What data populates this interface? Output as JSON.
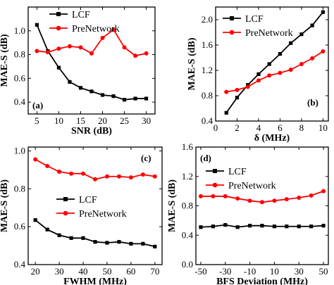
{
  "colors": {
    "lcf": "#000000",
    "prenetwork": "#ff0000",
    "axis": "#000000",
    "background": "#ffffff"
  },
  "chart_data": [
    {
      "id": "a",
      "type": "line",
      "panel_label": "(a)",
      "xlabel": "SNR (dB)",
      "ylabel": "MAE-S (dB)",
      "xlim": [
        3,
        32
      ],
      "ylim": [
        0.3,
        1.2
      ],
      "xticks": [
        5,
        10,
        15,
        20,
        25,
        30
      ],
      "yticks": [
        0.4,
        0.6,
        0.8,
        1.0
      ],
      "ytick_labels": [
        "0.4",
        "0.6",
        "0.8",
        "1.0"
      ],
      "legend": "top-right",
      "series": [
        {
          "name": "LCF",
          "color": "#000000",
          "marker": "square",
          "x": [
            5,
            7.5,
            10,
            12.5,
            15,
            17.5,
            20,
            22.5,
            25,
            27.5,
            30
          ],
          "y": [
            1.05,
            0.83,
            0.69,
            0.57,
            0.52,
            0.49,
            0.46,
            0.45,
            0.42,
            0.43,
            0.43
          ]
        },
        {
          "name": "PreNetwork",
          "color": "#ff0000",
          "marker": "circle",
          "x": [
            5,
            7.5,
            10,
            12.5,
            15,
            17.5,
            20,
            22.5,
            25,
            27.5,
            30
          ],
          "y": [
            0.83,
            0.82,
            0.85,
            0.87,
            0.86,
            0.81,
            0.94,
            1.01,
            0.86,
            0.79,
            0.81
          ]
        }
      ]
    },
    {
      "id": "b",
      "type": "line",
      "panel_label": "(b)",
      "xlabel": "δ (MHz)",
      "ylabel": "MAE-S (dB)",
      "xlim": [
        0,
        10.5
      ],
      "ylim": [
        0.4,
        2.2
      ],
      "xticks": [
        0,
        2,
        4,
        6,
        8,
        10
      ],
      "yticks": [
        0.4,
        0.8,
        1.2,
        1.6,
        2.0
      ],
      "ytick_labels": [
        "0.4",
        "0.8",
        "1.2",
        "1.6",
        "2.0"
      ],
      "legend": "top-left",
      "series": [
        {
          "name": "LCF",
          "color": "#000000",
          "marker": "square",
          "x": [
            1,
            2,
            3,
            4,
            5,
            6,
            7,
            8,
            9,
            10
          ],
          "y": [
            0.53,
            0.77,
            0.97,
            1.14,
            1.3,
            1.46,
            1.63,
            1.77,
            1.91,
            2.12
          ]
        },
        {
          "name": "PreNetwork",
          "color": "#ff0000",
          "marker": "circle",
          "x": [
            1,
            2,
            3,
            4,
            5,
            6,
            7,
            8,
            9,
            10
          ],
          "y": [
            0.86,
            0.89,
            0.94,
            1.04,
            1.12,
            1.16,
            1.21,
            1.3,
            1.39,
            1.5
          ]
        }
      ]
    },
    {
      "id": "c",
      "type": "line",
      "panel_label": "(c)",
      "xlabel": "FWHM (MHz)",
      "ylabel": "MAE-S (dB)",
      "xlim": [
        17,
        73
      ],
      "ylim": [
        0.4,
        1.02
      ],
      "xticks": [
        20,
        30,
        40,
        50,
        60,
        70
      ],
      "yticks": [
        0.4,
        0.6,
        0.8,
        1.0
      ],
      "ytick_labels": [
        "0.4",
        "0.6",
        "0.8",
        "1.0"
      ],
      "legend": "center",
      "series": [
        {
          "name": "LCF",
          "color": "#000000",
          "marker": "square",
          "x": [
            20,
            25,
            30,
            35,
            40,
            45,
            50,
            55,
            60,
            65,
            70
          ],
          "y": [
            0.635,
            0.585,
            0.555,
            0.54,
            0.54,
            0.52,
            0.515,
            0.52,
            0.51,
            0.51,
            0.495
          ]
        },
        {
          "name": "PreNetwork",
          "color": "#ff0000",
          "marker": "circle",
          "x": [
            20,
            25,
            30,
            35,
            40,
            45,
            50,
            55,
            60,
            65,
            70
          ],
          "y": [
            0.955,
            0.92,
            0.89,
            0.88,
            0.88,
            0.85,
            0.865,
            0.865,
            0.86,
            0.875,
            0.865
          ]
        }
      ]
    },
    {
      "id": "d",
      "type": "line",
      "panel_label": "(d)",
      "xlabel": "BFS Deviation (MHz)",
      "ylabel": "MAE-S (dB)",
      "xlim": [
        -54,
        54
      ],
      "ylim": [
        0.0,
        1.6
      ],
      "xticks": [
        -50,
        -30,
        -10,
        10,
        30,
        50
      ],
      "yticks": [
        0.0,
        0.4,
        0.8,
        1.2,
        1.6
      ],
      "ytick_labels": [
        "0.0",
        "0.4",
        "0.8",
        "1.2",
        "1.6"
      ],
      "legend": "top-left",
      "series": [
        {
          "name": "LCF",
          "color": "#000000",
          "marker": "square",
          "x": [
            -50,
            -40,
            -30,
            -20,
            -10,
            0,
            10,
            20,
            30,
            40,
            50
          ],
          "y": [
            0.51,
            0.52,
            0.54,
            0.51,
            0.53,
            0.53,
            0.52,
            0.52,
            0.52,
            0.52,
            0.53
          ]
        },
        {
          "name": "PreNetwork",
          "color": "#ff0000",
          "marker": "circle",
          "x": [
            -50,
            -40,
            -30,
            -20,
            -10,
            0,
            10,
            20,
            30,
            40,
            50
          ],
          "y": [
            0.93,
            0.93,
            0.93,
            0.9,
            0.87,
            0.85,
            0.87,
            0.89,
            0.91,
            0.94,
            1.0
          ]
        }
      ]
    }
  ]
}
